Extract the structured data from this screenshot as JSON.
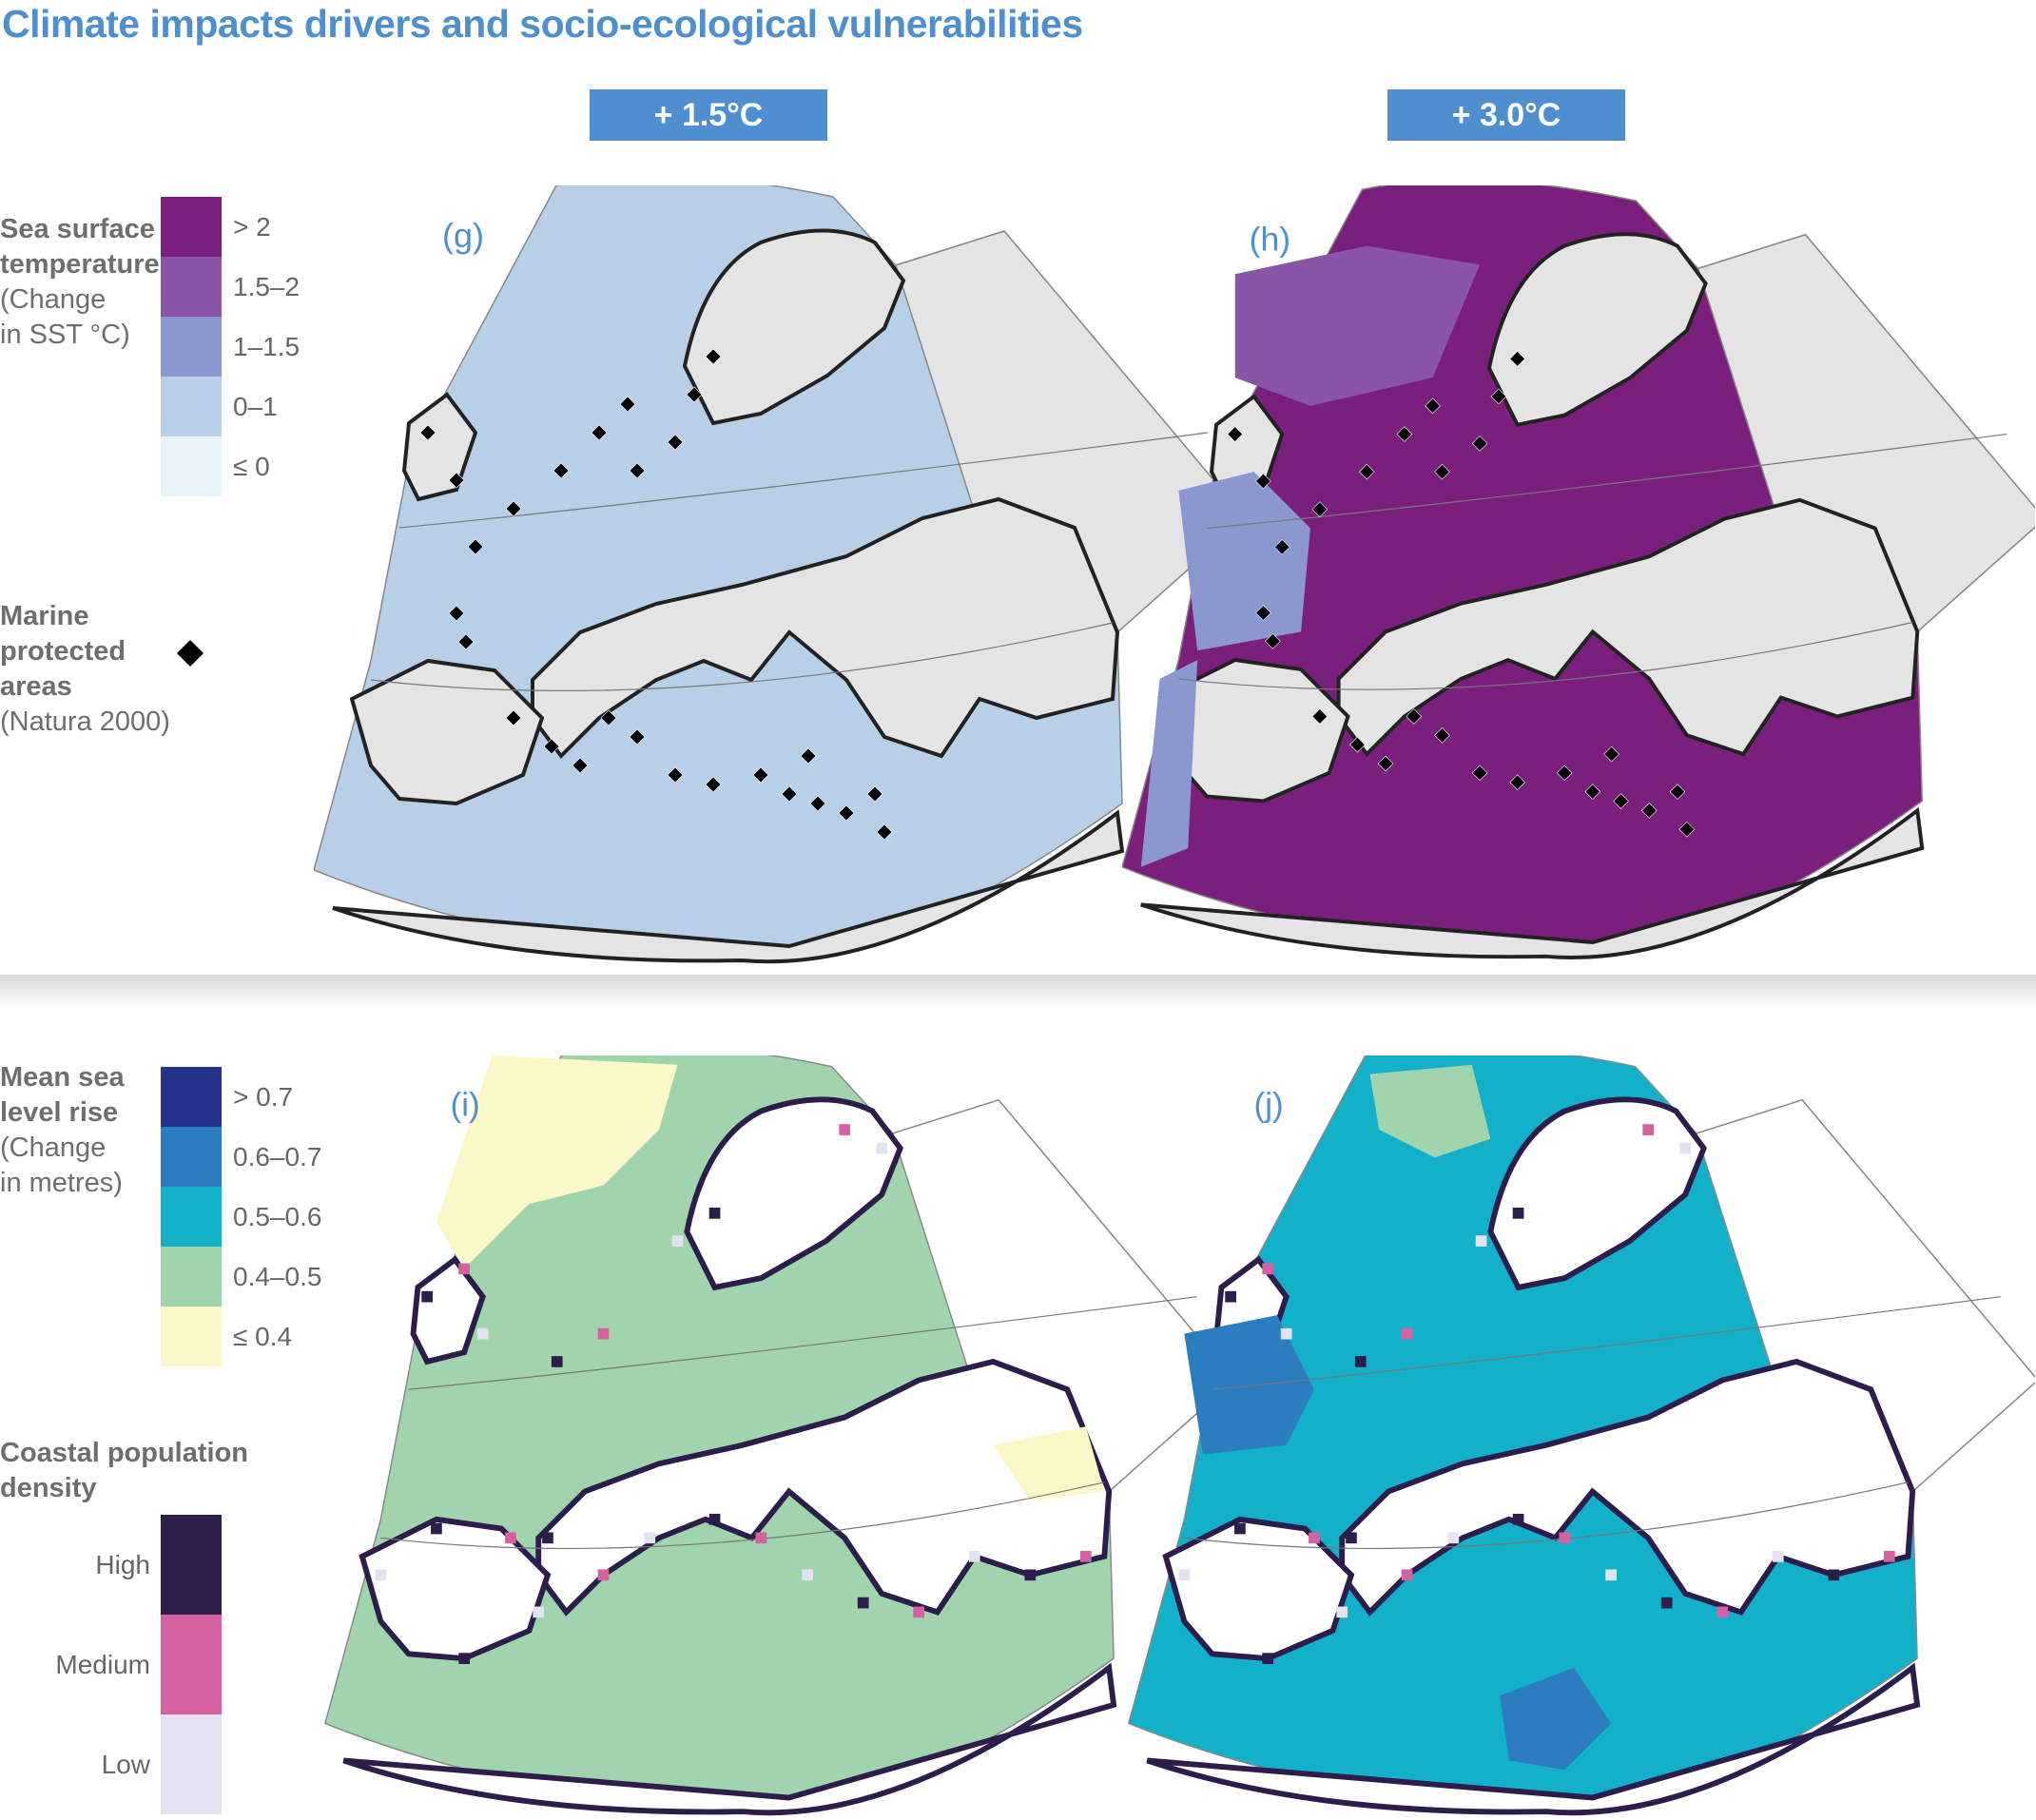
{
  "title": "Climate impacts drivers and socio-ecological vulnerabilities",
  "scenarios": [
    "+ 1.5°C",
    "+ 3.0°C"
  ],
  "sst_legend": {
    "heading_bold": [
      "Sea surface",
      "temperature"
    ],
    "heading_sub": [
      "(Change",
      "in SST °C)"
    ],
    "classes": [
      {
        "label": "> 2",
        "color": "#7b1f7d"
      },
      {
        "label": "1.5–2",
        "color": "#8a55a6"
      },
      {
        "label": "1–1.5",
        "color": "#8b97cf"
      },
      {
        "label": "0–1",
        "color": "#b8cfe8"
      },
      {
        "label": "≤ 0",
        "color": "#e9f4f8"
      }
    ]
  },
  "mpa_legend": {
    "heading_bold": [
      "Marine",
      "protected",
      "areas"
    ],
    "heading_sub": "(Natura 2000)",
    "marker_icon": "black-diamond"
  },
  "slr_legend": {
    "heading_bold": [
      "Mean sea",
      "level rise"
    ],
    "heading_sub": [
      "(Change",
      "in metres)"
    ],
    "classes": [
      {
        "label": "> 0.7",
        "color": "#24328a"
      },
      {
        "label": "0.6–0.7",
        "color": "#2b7dc0"
      },
      {
        "label": "0.5–0.6",
        "color": "#12b1c9"
      },
      {
        "label": "0.4–0.5",
        "color": "#9fd4ad"
      },
      {
        "label": "≤ 0.4",
        "color": "#fbf8c8"
      }
    ]
  },
  "pop_legend": {
    "heading_bold": [
      "Coastal population",
      "density"
    ],
    "classes": [
      {
        "label": "High",
        "color": "#2c1d4d"
      },
      {
        "label": "Medium",
        "color": "#d461a0"
      },
      {
        "label": "Low",
        "color": "#e3e2f0"
      }
    ]
  },
  "panels": [
    {
      "id": "g",
      "label": "(g)",
      "scenario": "+ 1.5°C",
      "layer": "Sea surface temperature",
      "dominant_class": "0–1"
    },
    {
      "id": "h",
      "label": "(h)",
      "scenario": "+ 3.0°C",
      "layer": "Sea surface temperature",
      "dominant_class": "> 2"
    },
    {
      "id": "i",
      "label": "(i)",
      "scenario": "+ 1.5°C",
      "layer": "Mean sea level rise",
      "dominant_class": "0.4–0.5"
    },
    {
      "id": "j",
      "label": "(j)",
      "scenario": "+ 3.0°C",
      "layer": "Mean sea level rise",
      "dominant_class": "0.5–0.6"
    }
  ]
}
